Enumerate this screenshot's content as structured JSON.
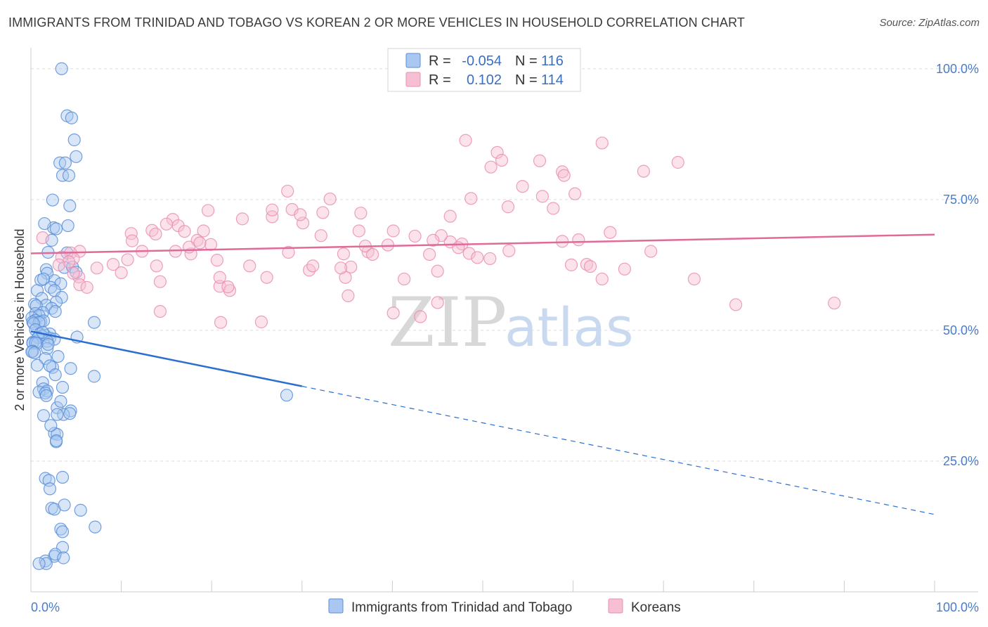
{
  "header": {
    "title": "IMMIGRANTS FROM TRINIDAD AND TOBAGO VS KOREAN 2 OR MORE VEHICLES IN HOUSEHOLD CORRELATION CHART",
    "source": "Source: ZipAtlas.com"
  },
  "watermark": {
    "zip": "ZIP",
    "atlas": "atlas"
  },
  "legend_box": {
    "rows": [
      {
        "r_label": "R =",
        "r_value": "-0.054",
        "n_label": "N =",
        "n_value": "116",
        "color": "#8db4e8"
      },
      {
        "r_label": "R =",
        "r_value": "0.102",
        "n_label": "N =",
        "n_value": "114",
        "color": "#f2a8c4"
      }
    ]
  },
  "chart_data": {
    "type": "scatter",
    "title": "IMMIGRANTS FROM TRINIDAD AND TOBAGO VS KOREAN 2 OR MORE VEHICLES IN HOUSEHOLD CORRELATION CHART",
    "xlabel": "",
    "ylabel": "2 or more Vehicles in Household",
    "xlim": [
      0,
      100
    ],
    "ylim": [
      0,
      104
    ],
    "x_tick_labels": [
      "0.0%",
      "100.0%"
    ],
    "y_ticks": [
      25,
      50,
      75,
      100
    ],
    "y_tick_labels": [
      "25.0%",
      "50.0%",
      "75.0%",
      "100.0%"
    ],
    "grid": true,
    "legend_position": "bottom",
    "series": [
      {
        "name": "Immigrants from Trinidad and Tobago",
        "color": "#5b8fd9",
        "fill": "#a9c7f0",
        "trend": {
          "x0": 0,
          "y0": 49.8,
          "x1": 30,
          "y1": 39.3,
          "dash_to_x": 100,
          "dash_to_y": 14.8
        },
        "x": [
          3.4,
          4.0,
          4.5,
          4.8,
          3.2,
          3.8,
          3.5,
          4.2,
          5.0,
          2.4,
          4.3,
          2.5,
          2.8,
          1.5,
          4.1,
          2.3,
          1.9,
          4.0,
          3.7,
          1.7,
          1.8,
          1.1,
          2.6,
          1.4,
          3.3,
          2.2,
          0.7,
          2.6,
          3.4,
          4.6,
          1.2,
          2.8,
          1.7,
          0.4,
          0.6,
          2.3,
          2.7,
          1.3,
          0.5,
          0.9,
          0.1,
          0.5,
          0.2,
          1.1,
          1.4,
          0.9,
          0.3,
          0.5,
          1.0,
          2.1,
          1.5,
          1.2,
          0.8,
          0.8,
          2.1,
          7.0,
          2.6,
          1.8,
          0.2,
          0.2,
          0.7,
          0.5,
          1.8,
          0.2,
          0.1,
          3.0,
          1.6,
          2.4,
          4.4,
          0.7,
          2.1,
          2.7,
          1.3,
          3.5,
          1.4,
          1.8,
          0.9,
          1.6,
          1.7,
          2.9,
          7.0,
          4.4,
          1.4,
          3.6,
          2.9,
          2.6,
          2.9,
          2.8,
          3.5,
          1.6,
          2.0,
          2.1,
          2.3,
          2.6,
          3.3,
          3.5,
          2.6,
          1.6,
          1.7,
          0.9,
          7.1,
          5.0,
          2.2,
          3.3,
          1.9,
          2.8,
          3.7,
          2.7,
          5.5,
          3.5,
          3.6,
          28.3,
          1.3,
          4.3,
          5.1,
          0.4
        ],
        "y": [
          100.0,
          91.0,
          90.6,
          86.4,
          82.0,
          82.0,
          79.6,
          79.6,
          83.2,
          74.9,
          73.8,
          69.6,
          69.4,
          70.4,
          70.0,
          67.2,
          64.9,
          64.8,
          62.0,
          61.6,
          60.9,
          59.6,
          59.5,
          59.8,
          58.9,
          58.2,
          57.6,
          57.6,
          56.3,
          62.1,
          56.1,
          55.4,
          54.8,
          55.0,
          54.7,
          54.2,
          53.6,
          53.4,
          53.2,
          52.8,
          52.4,
          51.9,
          51.6,
          51.6,
          51.8,
          51.5,
          51.3,
          50.1,
          49.3,
          49.3,
          49.1,
          48.9,
          48.6,
          48.6,
          48.5,
          51.5,
          48.3,
          47.9,
          47.7,
          47.5,
          47.5,
          47.6,
          46.5,
          46.0,
          45.9,
          45.0,
          44.6,
          42.9,
          42.7,
          43.3,
          43.2,
          41.5,
          40.0,
          39.1,
          38.8,
          38.4,
          38.2,
          38.0,
          37.5,
          35.2,
          41.2,
          34.6,
          33.7,
          33.9,
          33.9,
          30.3,
          30.1,
          28.7,
          21.9,
          21.7,
          21.3,
          19.7,
          16.0,
          15.8,
          12.0,
          8.5,
          6.8,
          5.9,
          5.4,
          5.4,
          12.4,
          61.1,
          31.8,
          36.4,
          47.3,
          28.9,
          16.6,
          7.2,
          15.6,
          11.5,
          6.5,
          37.6,
          49.6,
          34.1,
          48.7,
          45.7
        ]
      },
      {
        "name": "Koreans",
        "color": "#ea8fb1",
        "fill": "#f6bfd3",
        "trend": {
          "x0": 0,
          "y0": 64.7,
          "x1": 100,
          "y1": 68.3
        },
        "x": [
          48.1,
          51.6,
          52.1,
          50.9,
          58.8,
          54.4,
          59.0,
          52.8,
          60.2,
          56.6,
          48.7,
          57.8,
          60.6,
          61.5,
          63.2,
          28.4,
          33.1,
          36.5,
          30.1,
          36.3,
          24.2,
          26.1,
          20.9,
          22.0,
          35.1,
          40.1,
          43.1,
          45.0,
          34.8,
          30.8,
          31.2,
          47.7,
          48.5,
          44.1,
          46.4,
          58.8,
          52.9,
          68.6,
          64.1,
          88.9,
          78.0,
          73.4,
          65.7,
          59.8,
          45.4,
          39.5,
          37.3,
          34.6,
          35.4,
          28.9,
          26.7,
          19.6,
          15.7,
          16.3,
          15.0,
          13.4,
          13.8,
          11.1,
          5.4,
          11.2,
          4.4,
          4.7,
          3.4,
          4.2,
          3.1,
          1.3,
          5.3,
          5.4,
          6.2,
          4.7,
          9.1,
          7.3,
          10.0,
          10.7,
          12.3,
          16.0,
          17.7,
          18.4,
          17.0,
          19.1,
          19.9,
          23.4,
          29.8,
          32.1,
          37.0,
          25.5,
          21.0,
          14.3,
          17.5,
          20.9,
          21.8,
          20.6,
          18.7,
          13.9,
          14.3,
          28.5,
          34.3,
          41.3,
          37.8,
          44.5,
          45.0,
          49.4,
          47.3,
          61.9,
          67.8,
          71.6,
          63.2,
          56.3,
          50.8,
          26.7,
          32.3,
          40.1,
          46.4,
          42.5
        ],
        "y": [
          86.3,
          84.0,
          82.5,
          81.2,
          80.3,
          77.5,
          79.6,
          73.6,
          76.1,
          75.6,
          75.2,
          73.3,
          67.3,
          62.6,
          59.8,
          76.6,
          75.1,
          72.4,
          70.5,
          69.0,
          62.3,
          60.1,
          58.4,
          57.6,
          56.6,
          53.3,
          52.6,
          55.3,
          60.1,
          61.5,
          62.3,
          66.5,
          64.7,
          64.5,
          66.9,
          67.0,
          65.2,
          65.1,
          68.7,
          55.2,
          54.9,
          59.8,
          61.7,
          62.5,
          68.1,
          66.3,
          65.0,
          64.6,
          62.1,
          73.1,
          71.7,
          72.9,
          71.2,
          70.0,
          70.3,
          69.1,
          68.4,
          68.5,
          65.1,
          67.1,
          64.8,
          63.7,
          64.0,
          63.1,
          62.5,
          67.7,
          60.2,
          58.7,
          58.2,
          60.9,
          62.6,
          61.9,
          61.0,
          63.5,
          65.1,
          65.1,
          64.6,
          67.2,
          68.9,
          69.0,
          66.4,
          71.3,
          72.1,
          68.1,
          66.1,
          51.6,
          51.5,
          53.6,
          65.9,
          60.1,
          58.3,
          63.4,
          66.7,
          62.3,
          59.3,
          64.9,
          61.9,
          59.8,
          64.5,
          67.2,
          61.3,
          63.9,
          65.8,
          62.2,
          80.4,
          82.1,
          85.8,
          82.4,
          63.7,
          73.0,
          72.5,
          69.0,
          71.8,
          68.0
        ]
      }
    ]
  }
}
